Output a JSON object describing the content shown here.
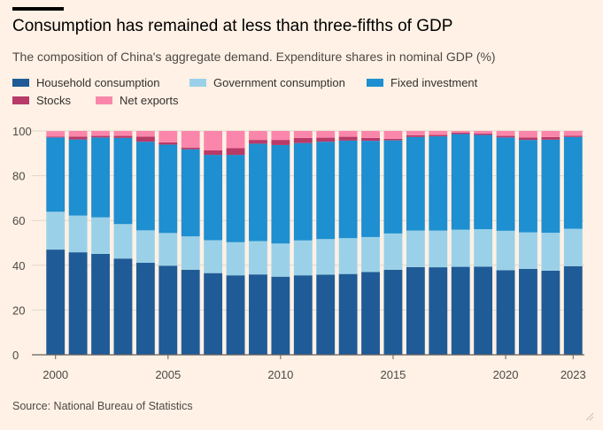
{
  "title": "Consumption has remained at less than three-fifths of GDP",
  "subtitle": "The composition of China's aggregate demand. Expenditure shares in nominal GDP (%)",
  "source": "Source: National Bureau of Statistics",
  "chart_data": {
    "type": "bar",
    "stacked": true,
    "categories": [
      "2000",
      "2001",
      "2002",
      "2003",
      "2004",
      "2005",
      "2006",
      "2007",
      "2008",
      "2009",
      "2010",
      "2011",
      "2012",
      "2013",
      "2014",
      "2015",
      "2016",
      "2017",
      "2018",
      "2019",
      "2020",
      "2021",
      "2022",
      "2023"
    ],
    "x_tick_labels": [
      "2000",
      "2005",
      "2010",
      "2015",
      "2020",
      "2023"
    ],
    "y_ticks": [
      0,
      20,
      40,
      60,
      80,
      100
    ],
    "ylim": [
      0,
      100
    ],
    "grid": true,
    "legend_position": "top",
    "series": [
      {
        "name": "Household consumption",
        "color": "#1f5b96",
        "values": [
          47.0,
          45.8,
          45.1,
          43.0,
          41.1,
          39.8,
          38.0,
          36.5,
          35.5,
          35.9,
          34.9,
          35.5,
          35.8,
          36.1,
          37.0,
          38.0,
          39.2,
          39.1,
          39.3,
          39.4,
          37.8,
          38.4,
          37.6,
          39.6
        ]
      },
      {
        "name": "Government consumption",
        "color": "#9ad1e9",
        "values": [
          16.9,
          16.4,
          16.3,
          15.4,
          14.5,
          14.6,
          14.9,
          14.7,
          14.8,
          14.9,
          14.8,
          15.6,
          15.9,
          16.0,
          15.6,
          16.2,
          16.3,
          16.4,
          16.6,
          16.7,
          17.6,
          16.3,
          16.9,
          16.7
        ]
      },
      {
        "name": "Fixed investment",
        "color": "#1e8fd0",
        "values": [
          33.2,
          34.0,
          35.7,
          38.5,
          39.6,
          39.5,
          38.9,
          38.1,
          39.0,
          43.5,
          44.0,
          43.5,
          43.5,
          43.6,
          43.0,
          41.6,
          41.8,
          42.1,
          42.7,
          42.1,
          41.7,
          41.3,
          41.6,
          41.0
        ]
      },
      {
        "name": "Stocks",
        "color": "#b83a69",
        "values": [
          0.4,
          1.3,
          0.7,
          0.9,
          2.3,
          1.0,
          0.8,
          2.0,
          3.0,
          1.7,
          2.3,
          2.3,
          1.8,
          1.7,
          1.3,
          0.7,
          0.8,
          0.6,
          0.6,
          0.6,
          0.7,
          1.1,
          1.2,
          0.6
        ]
      },
      {
        "name": "Net exports",
        "color": "#fa87ab",
        "values": [
          2.4,
          2.5,
          2.2,
          2.2,
          2.5,
          5.1,
          7.4,
          8.7,
          7.7,
          4.0,
          4.0,
          3.1,
          3.0,
          2.6,
          3.1,
          3.5,
          1.9,
          1.8,
          0.8,
          1.2,
          2.2,
          2.9,
          2.7,
          2.1
        ]
      }
    ]
  }
}
